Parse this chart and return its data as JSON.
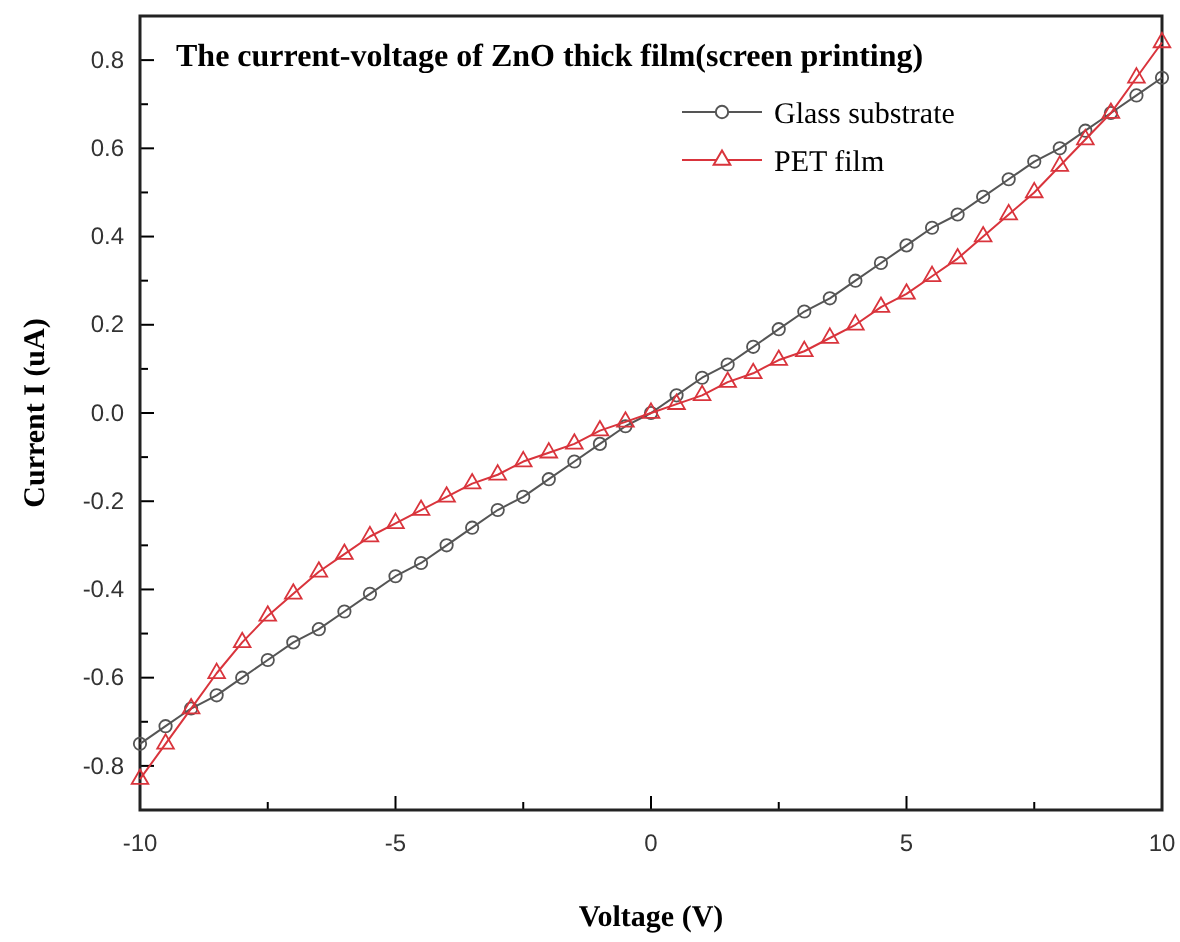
{
  "chart_data": {
    "type": "line",
    "title": "The current-voltage of  ZnO thick film(screen printing)",
    "xlabel": "Voltage (V)",
    "ylabel": "Current  I (uA)",
    "x": [
      -10,
      -9.5,
      -9,
      -8.5,
      -8,
      -7.5,
      -7,
      -6.5,
      -6,
      -5.5,
      -5,
      -4.5,
      -4,
      -3.5,
      -3,
      -2.5,
      -2,
      -1.5,
      -1,
      -0.5,
      0,
      0.5,
      1,
      1.5,
      2,
      2.5,
      3,
      3.5,
      4,
      4.5,
      5,
      5.5,
      6,
      6.5,
      7,
      7.5,
      8,
      8.5,
      9,
      9.5,
      10
    ],
    "series": [
      {
        "name": "Glass substrate",
        "color": "#555555",
        "marker": "circle",
        "values": [
          -0.75,
          -0.71,
          -0.67,
          -0.64,
          -0.6,
          -0.56,
          -0.52,
          -0.49,
          -0.45,
          -0.41,
          -0.37,
          -0.34,
          -0.3,
          -0.26,
          -0.22,
          -0.19,
          -0.15,
          -0.11,
          -0.07,
          -0.03,
          0.0,
          0.04,
          0.08,
          0.11,
          0.15,
          0.19,
          0.23,
          0.26,
          0.3,
          0.34,
          0.38,
          0.42,
          0.45,
          0.49,
          0.53,
          0.57,
          0.6,
          0.64,
          0.68,
          0.72,
          0.76
        ]
      },
      {
        "name": "PET film",
        "color": "#d9343c",
        "marker": "triangle",
        "values": [
          -0.83,
          -0.75,
          -0.67,
          -0.59,
          -0.52,
          -0.46,
          -0.41,
          -0.36,
          -0.32,
          -0.28,
          -0.25,
          -0.22,
          -0.19,
          -0.16,
          -0.14,
          -0.11,
          -0.09,
          -0.07,
          -0.04,
          -0.02,
          0,
          0.02,
          0.04,
          0.07,
          0.09,
          0.12,
          0.14,
          0.17,
          0.2,
          0.24,
          0.27,
          0.31,
          0.35,
          0.4,
          0.45,
          0.5,
          0.56,
          0.62,
          0.68,
          0.76,
          0.84
        ]
      }
    ],
    "xlim": [
      -10,
      10
    ],
    "xticks": [
      -10,
      {
        "value": -7.5,
        "label": null
      },
      -5,
      {
        "value": -2.5,
        "label": null
      },
      0,
      {
        "value": 2.5,
        "label": null
      },
      5,
      {
        "value": 7.5,
        "label": null
      },
      10
    ],
    "ylim": [
      -0.9,
      0.9
    ],
    "yticks": [
      -0.8,
      {
        "value": -0.7,
        "label": null
      },
      -0.6,
      {
        "value": -0.5,
        "label": null
      },
      -0.4,
      {
        "value": -0.3,
        "label": null
      },
      -0.2,
      {
        "value": -0.1,
        "label": null
      },
      {
        "value": 0,
        "label": "0.0"
      },
      {
        "value": 0.1,
        "label": null
      },
      0.2,
      {
        "value": 0.3,
        "label": null
      },
      0.4,
      {
        "value": 0.5,
        "label": null
      },
      0.6,
      {
        "value": 0.7,
        "label": null
      },
      0.8
    ],
    "legend": "top right",
    "grid": false,
    "line_style": "solid"
  }
}
